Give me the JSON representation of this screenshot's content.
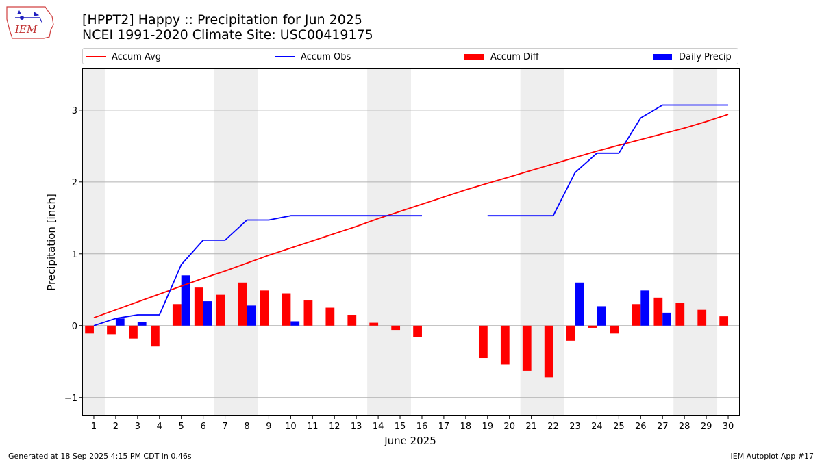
{
  "logo": {
    "text": "IEM",
    "icon": "iowa-state-outline-logo"
  },
  "title": {
    "line1": "[HPPT2] Happy :: Precipitation for Jun 2025",
    "line2": "NCEI 1991-2020 Climate Site: USC00419175"
  },
  "footer": {
    "left": "Generated at 18 Sep 2025 4:15 PM CDT in 0.46s",
    "right": "IEM Autoplot App #17"
  },
  "chart_data": {
    "type": "bar",
    "xlabel": "June 2025",
    "ylabel": "Precipitation [inch]",
    "ylim": [
      -1.25,
      3.57
    ],
    "yticks": [
      -1,
      0,
      1,
      2,
      3
    ],
    "ytick_labels": [
      "−1",
      "0",
      "1",
      "2",
      "3"
    ],
    "grid": "horizontal",
    "legend_placement": "top",
    "weekend_shading": [
      [
        0.5,
        1.5
      ],
      [
        6.5,
        8.5
      ],
      [
        13.5,
        15.5
      ],
      [
        20.5,
        22.5
      ],
      [
        27.5,
        29.5
      ]
    ],
    "x": [
      1,
      2,
      3,
      4,
      5,
      6,
      7,
      8,
      9,
      10,
      11,
      12,
      13,
      14,
      15,
      16,
      17,
      18,
      19,
      20,
      21,
      22,
      23,
      24,
      25,
      26,
      27,
      28,
      29,
      30
    ],
    "series": [
      {
        "name": "Accum Avg",
        "kind": "line",
        "color": "#ff0000",
        "values": [
          0.11,
          0.22,
          0.33,
          0.44,
          0.55,
          0.66,
          0.76,
          0.87,
          0.98,
          1.08,
          1.18,
          1.28,
          1.38,
          1.49,
          1.59,
          1.69,
          1.79,
          1.89,
          1.98,
          2.07,
          2.16,
          2.25,
          2.34,
          2.43,
          2.51,
          2.59,
          2.67,
          2.75,
          2.84,
          2.94
        ]
      },
      {
        "name": "Accum Obs",
        "kind": "line",
        "color": "#0000ff",
        "values": [
          0.0,
          0.1,
          0.15,
          0.15,
          0.85,
          1.19,
          1.19,
          1.47,
          1.47,
          1.53,
          1.53,
          1.53,
          1.53,
          1.53,
          1.53,
          1.53,
          null,
          null,
          1.53,
          1.53,
          1.53,
          1.53,
          2.13,
          2.4,
          2.4,
          2.89,
          3.07,
          3.07,
          3.07,
          3.07
        ]
      },
      {
        "name": "Accum Diff",
        "kind": "bar",
        "color": "#ff0000",
        "values": [
          -0.11,
          -0.12,
          -0.18,
          -0.29,
          0.3,
          0.53,
          0.43,
          0.6,
          0.49,
          0.45,
          0.35,
          0.25,
          0.15,
          0.04,
          -0.06,
          -0.16,
          null,
          null,
          -0.45,
          -0.54,
          -0.63,
          -0.72,
          -0.21,
          -0.03,
          -0.11,
          0.3,
          0.39,
          0.32,
          0.22,
          0.13
        ]
      },
      {
        "name": "Daily Precip",
        "kind": "bar",
        "color": "#0000ff",
        "values": [
          0,
          0.1,
          0.05,
          0,
          0.7,
          0.34,
          0,
          0.28,
          0,
          0.06,
          0,
          0,
          0,
          0,
          0,
          0,
          0,
          0,
          0,
          0,
          0,
          0,
          0.6,
          0.27,
          0,
          0.49,
          0.18,
          0,
          0,
          0
        ]
      }
    ]
  }
}
